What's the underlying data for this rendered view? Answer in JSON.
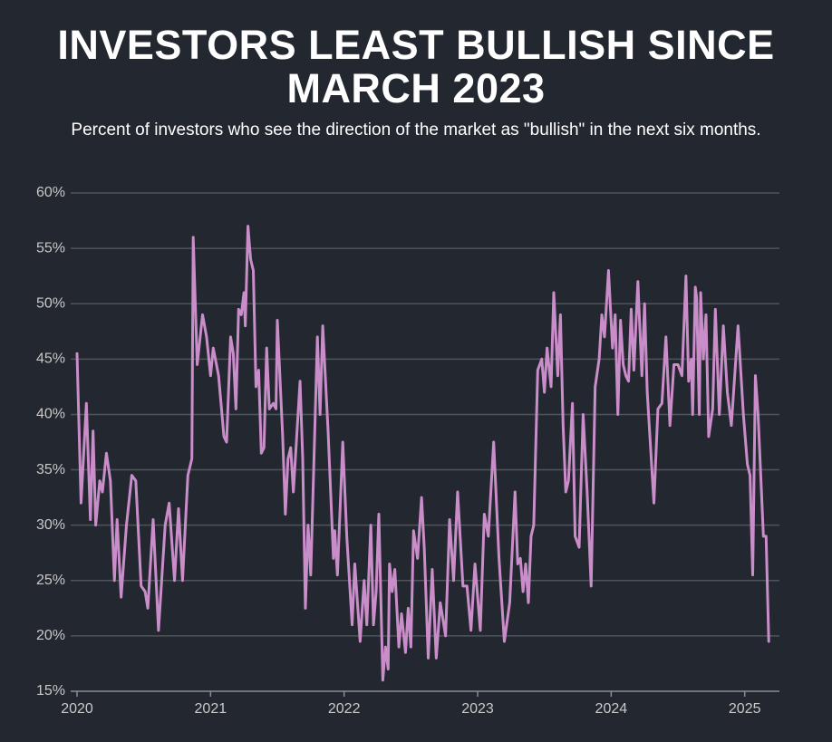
{
  "chart_data": {
    "type": "line",
    "title": "INVESTORS LEAST BULLISH SINCE MARCH 2023",
    "subtitle": "Percent of investors who see the direction of the market as \"bullish\" in the next six months.",
    "color": "#c98ec9",
    "grid": true,
    "xlim": [
      2020,
      2025.26
    ],
    "xticks": [
      2020,
      2021,
      2022,
      2023,
      2024,
      2025
    ],
    "ylim": [
      15,
      60
    ],
    "yticks": [
      {
        "value": 15,
        "label": "15%"
      },
      {
        "value": 20,
        "label": "20%"
      },
      {
        "value": 25,
        "label": "25%"
      },
      {
        "value": 30,
        "label": "30%"
      },
      {
        "value": 35,
        "label": "35%"
      },
      {
        "value": 40,
        "label": "40%"
      },
      {
        "value": 45,
        "label": "45%"
      },
      {
        "value": 50,
        "label": "50%"
      },
      {
        "value": 55,
        "label": "55%"
      },
      {
        "value": 60,
        "label": "60%"
      }
    ],
    "x": [
      2020.0,
      2020.03,
      2020.07,
      2020.1,
      2020.12,
      2020.14,
      2020.17,
      2020.19,
      2020.22,
      2020.25,
      2020.28,
      2020.3,
      2020.33,
      2020.37,
      2020.41,
      2020.44,
      2020.48,
      2020.51,
      2020.53,
      2020.57,
      2020.61,
      2020.66,
      2020.69,
      2020.73,
      2020.76,
      2020.79,
      2020.83,
      2020.85,
      2020.86,
      2020.87,
      2020.9,
      2020.94,
      2020.97,
      2021.0,
      2021.02,
      2021.06,
      2021.1,
      2021.12,
      2021.15,
      2021.17,
      2021.19,
      2021.21,
      2021.23,
      2021.25,
      2021.26,
      2021.28,
      2021.3,
      2021.32,
      2021.34,
      2021.36,
      2021.38,
      2021.4,
      2021.42,
      2021.44,
      2021.47,
      2021.49,
      2021.5,
      2021.54,
      2021.56,
      2021.58,
      2021.6,
      2021.62,
      2021.67,
      2021.69,
      2021.71,
      2021.73,
      2021.75,
      2021.8,
      2021.82,
      2021.84,
      2021.88,
      2021.92,
      2021.93,
      2021.95,
      2021.99,
      2022.02,
      2022.06,
      2022.08,
      2022.12,
      2022.15,
      2022.17,
      2022.2,
      2022.22,
      2022.24,
      2022.26,
      2022.29,
      2022.31,
      2022.33,
      2022.34,
      2022.36,
      2022.38,
      2022.41,
      2022.43,
      2022.46,
      2022.48,
      2022.5,
      2022.52,
      2022.55,
      2022.58,
      2022.6,
      2022.63,
      2022.66,
      2022.69,
      2022.72,
      2022.76,
      2022.79,
      2022.82,
      2022.85,
      2022.89,
      2022.92,
      2022.95,
      2022.98,
      2023.02,
      2023.05,
      2023.08,
      2023.12,
      2023.16,
      2023.2,
      2023.24,
      2023.28,
      2023.3,
      2023.32,
      2023.34,
      2023.36,
      2023.38,
      2023.4,
      2023.42,
      2023.45,
      2023.48,
      2023.5,
      2023.52,
      2023.55,
      2023.57,
      2023.6,
      2023.62,
      2023.64,
      2023.66,
      2023.68,
      2023.71,
      2023.73,
      2023.76,
      2023.79,
      2023.82,
      2023.85,
      2023.88,
      2023.91,
      2023.93,
      2023.95,
      2023.98,
      2024.01,
      2024.03,
      2024.05,
      2024.07,
      2024.09,
      2024.11,
      2024.13,
      2024.15,
      2024.17,
      2024.2,
      2024.23,
      2024.25,
      2024.27,
      2024.3,
      2024.32,
      2024.35,
      2024.38,
      2024.41,
      2024.44,
      2024.47,
      2024.5,
      2024.53,
      2024.56,
      2024.58,
      2024.6,
      2024.61,
      2024.63,
      2024.64,
      2024.66,
      2024.67,
      2024.69,
      2024.71,
      2024.73,
      2024.76,
      2024.78,
      2024.81,
      2024.84,
      2024.87,
      2024.9,
      2024.95,
      2024.99,
      2025.02,
      2025.04,
      2025.06,
      2025.08,
      2025.1,
      2025.14,
      2025.16,
      2025.18
    ],
    "values": [
      45.5,
      32,
      41,
      30.5,
      38.5,
      30,
      34,
      33,
      36.5,
      34,
      25,
      30.5,
      23.5,
      30,
      34.5,
      34,
      24.5,
      24,
      22.5,
      30.5,
      20.5,
      30,
      32,
      25,
      31.5,
      25,
      34.5,
      35.5,
      36,
      56,
      44.5,
      49,
      47,
      43.5,
      46,
      43.5,
      38,
      37.5,
      47,
      45.5,
      40.5,
      49.5,
      49,
      51,
      48,
      57,
      54,
      53,
      42.5,
      44,
      36.5,
      37,
      46,
      40.5,
      41,
      40.5,
      48.5,
      38,
      31,
      36,
      37,
      33,
      43,
      36,
      22.5,
      30,
      25.5,
      47,
      40,
      48,
      38.5,
      27,
      29.5,
      25.5,
      37.5,
      29,
      21,
      26.5,
      19.5,
      25,
      21,
      30,
      21,
      24,
      31,
      16,
      19,
      17,
      26.5,
      24,
      26,
      19,
      22,
      18.5,
      22.5,
      19,
      29.5,
      27,
      32.5,
      28,
      18,
      26,
      18,
      23,
      20,
      30.5,
      25,
      33,
      24.5,
      24.5,
      20.5,
      26.5,
      20.5,
      31,
      29,
      37.5,
      27,
      19.5,
      23,
      33,
      26.5,
      27,
      24,
      26.5,
      23,
      29,
      30,
      44,
      45,
      42,
      46,
      42.5,
      51,
      43.5,
      49,
      39,
      33,
      34,
      41,
      29,
      28,
      40,
      33,
      24.5,
      42.5,
      45,
      49,
      47,
      53,
      46,
      49,
      40,
      48.5,
      44.5,
      43.5,
      43,
      49.5,
      44,
      52,
      43.5,
      50,
      42,
      36,
      32,
      40.5,
      41,
      47,
      39,
      44.5,
      44.5,
      43.5,
      52.5,
      43,
      45,
      40,
      51.5,
      50.5,
      40,
      51,
      45,
      49,
      38,
      40.5,
      49.5,
      40,
      48,
      42,
      39,
      48,
      40,
      35.5,
      34.5,
      25.5,
      43.5,
      40,
      29,
      29,
      19.5
    ]
  }
}
